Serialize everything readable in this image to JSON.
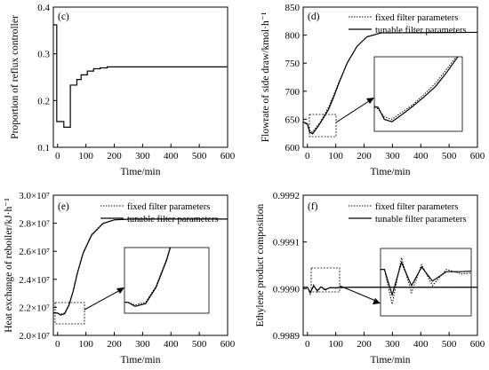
{
  "chart_data": [
    {
      "type": "line",
      "panel_label": "(c)",
      "xlabel": "Time/min",
      "ylabel": "Proportion of reflux controller",
      "xlim": [
        -15,
        600
      ],
      "ylim": [
        0.1,
        0.4
      ],
      "x_ticks": [
        "0",
        "100",
        "200",
        "300",
        "400",
        "500",
        "600"
      ],
      "y_ticks": [
        "0.1",
        "0.2",
        "0.3",
        "0.4"
      ],
      "series": [
        {
          "values": [
            [
              -15,
              0.362
            ],
            [
              -3,
              0.362
            ],
            [
              -3,
              0.155
            ],
            [
              10,
              0.155
            ],
            [
              10,
              0.155
            ],
            [
              22,
              0.155
            ],
            [
              22,
              0.143
            ],
            [
              45,
              0.143
            ],
            [
              45,
              0.233
            ],
            [
              68,
              0.233
            ],
            [
              68,
              0.245
            ],
            [
              83,
              0.245
            ],
            [
              83,
              0.255
            ],
            [
              105,
              0.255
            ],
            [
              105,
              0.263
            ],
            [
              127,
              0.263
            ],
            [
              127,
              0.268
            ],
            [
              150,
              0.268
            ],
            [
              150,
              0.27
            ],
            [
              175,
              0.27
            ],
            [
              175,
              0.272
            ],
            [
              600,
              0.272
            ]
          ]
        }
      ]
    },
    {
      "type": "line",
      "panel_label": "(d)",
      "xlabel": "Time/min",
      "ylabel": "Flowrate of side draw/kmol·h⁻¹",
      "xlim": [
        -15,
        600
      ],
      "ylim": [
        600,
        850
      ],
      "x_ticks": [
        "0",
        "100",
        "200",
        "300",
        "400",
        "500",
        "600"
      ],
      "y_ticks": [
        "600",
        "650",
        "700",
        "750",
        "800",
        "850"
      ],
      "legend": [
        "fixed filter parameters",
        "tunable filter parameters"
      ],
      "series": [
        {
          "name": "fixed filter parameters",
          "values": [
            [
              -15,
              645
            ],
            [
              0,
              640
            ],
            [
              8,
              630
            ],
            [
              18,
              627
            ],
            [
              30,
              635
            ],
            [
              45,
              645
            ],
            [
              60,
              658
            ],
            [
              75,
              672
            ],
            [
              90,
              690
            ],
            [
              110,
              715
            ],
            [
              140,
              750
            ],
            [
              175,
              780
            ],
            [
              210,
              797
            ],
            [
              260,
              804
            ],
            [
              600,
              805
            ]
          ]
        },
        {
          "name": "tunable filter parameters",
          "values": [
            [
              -15,
              645
            ],
            [
              0,
              642
            ],
            [
              8,
              627
            ],
            [
              18,
              624
            ],
            [
              30,
              632
            ],
            [
              45,
              643
            ],
            [
              60,
              655
            ],
            [
              75,
              668
            ],
            [
              90,
              686
            ],
            [
              110,
              713
            ],
            [
              140,
              750
            ],
            [
              175,
              780
            ],
            [
              210,
              797
            ],
            [
              260,
              804
            ],
            [
              600,
              805
            ]
          ]
        }
      ]
    },
    {
      "type": "line",
      "panel_label": "(e)",
      "xlabel": "Time/min",
      "ylabel": "Heat exchange of reboiler/kJ·h⁻¹",
      "xlim": [
        -15,
        600
      ],
      "ylim": [
        20000000,
        30000000
      ],
      "x_ticks": [
        "0",
        "100",
        "200",
        "300",
        "400",
        "500",
        "600"
      ],
      "y_ticks": [
        "2.0×10⁷",
        "2.2×10⁷",
        "2.4×10⁷",
        "2.6×10⁷",
        "2.8×10⁷",
        "3.0×10⁷"
      ],
      "legend": [
        "fixed filter parameters",
        "tunable filter parameters"
      ],
      "series": [
        {
          "name": "fixed filter parameters",
          "values": [
            [
              -15,
              21600000
            ],
            [
              0,
              21600000
            ],
            [
              10,
              21500000
            ],
            [
              25,
              21600000
            ],
            [
              40,
              22200000
            ],
            [
              55,
              23200000
            ],
            [
              70,
              24500000
            ],
            [
              90,
              25900000
            ],
            [
              120,
              27200000
            ],
            [
              160,
              28000000
            ],
            [
              200,
              28250000
            ],
            [
              260,
              28300000
            ],
            [
              600,
              28300000
            ]
          ]
        },
        {
          "name": "tunable filter parameters",
          "values": [
            [
              -15,
              21600000
            ],
            [
              0,
              21600000
            ],
            [
              10,
              21450000
            ],
            [
              25,
              21550000
            ],
            [
              40,
              22150000
            ],
            [
              55,
              23150000
            ],
            [
              70,
              24450000
            ],
            [
              90,
              25850000
            ],
            [
              120,
              27150000
            ],
            [
              160,
              27980000
            ],
            [
              200,
              28240000
            ],
            [
              260,
              28300000
            ],
            [
              600,
              28300000
            ]
          ]
        }
      ]
    },
    {
      "type": "line",
      "panel_label": "(f)",
      "xlabel": "Time/min",
      "ylabel": "Ethylene product composition",
      "xlim": [
        -15,
        600
      ],
      "ylim": [
        0.9989,
        0.9992
      ],
      "x_ticks": [
        "0",
        "100",
        "200",
        "300",
        "400",
        "500",
        "600"
      ],
      "y_ticks": [
        "0.9989",
        "0.9990",
        "0.9991",
        "0.9992"
      ],
      "legend": [
        "fixed filter parameters",
        "tunable filter parameters"
      ],
      "series": [
        {
          "name": "fixed filter parameters",
          "values": [
            [
              -15,
              0.999003
            ],
            [
              0,
              0.999003
            ],
            [
              10,
              0.998988
            ],
            [
              22,
              0.999008
            ],
            [
              35,
              0.998993
            ],
            [
              48,
              0.999005
            ],
            [
              62,
              0.998996
            ],
            [
              80,
              0.999003
            ],
            [
              100,
              0.999001
            ],
            [
              150,
              0.999003
            ],
            [
              600,
              0.999003
            ]
          ]
        },
        {
          "name": "tunable filter parameters",
          "values": [
            [
              -15,
              0.999003
            ],
            [
              0,
              0.999003
            ],
            [
              10,
              0.998992
            ],
            [
              22,
              0.999006
            ],
            [
              35,
              0.998996
            ],
            [
              48,
              0.999004
            ],
            [
              62,
              0.998998
            ],
            [
              80,
              0.999002
            ],
            [
              100,
              0.999002
            ],
            [
              150,
              0.999003
            ],
            [
              600,
              0.999003
            ]
          ]
        }
      ]
    }
  ]
}
